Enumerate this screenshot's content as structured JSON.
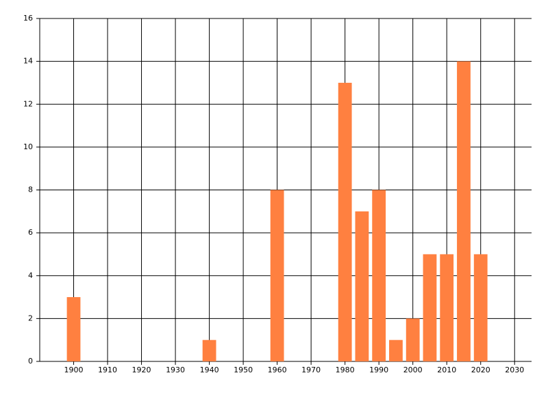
{
  "chart_data": {
    "type": "bar",
    "x": [
      1900,
      1940,
      1960,
      1980,
      1985,
      1990,
      1995,
      2000,
      2005,
      2010,
      2015,
      2020
    ],
    "values": [
      3,
      1,
      8,
      13,
      7,
      8,
      1,
      2,
      5,
      5,
      14,
      5
    ],
    "color": "#ff8040",
    "xlim": [
      1890,
      2035
    ],
    "xticks": [
      1900,
      1910,
      1920,
      1930,
      1940,
      1950,
      1960,
      1970,
      1980,
      1990,
      2000,
      2010,
      2020,
      2030
    ],
    "ylim": [
      0,
      16
    ],
    "yticks": [
      0,
      2,
      4,
      6,
      8,
      10,
      12,
      14,
      16
    ],
    "grid": true
  }
}
